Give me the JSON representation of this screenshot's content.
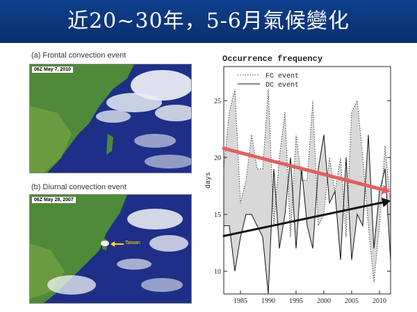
{
  "title": "近20~30年，5-6月氣候變化",
  "panel_a": {
    "caption": "(a)  Frontal convection event",
    "label": "06Z May 7, 2010"
  },
  "panel_b": {
    "caption": "(b)  Diurnal convection event",
    "label": "06Z May 28, 2007",
    "annotation": "Taiwan"
  },
  "colors": {
    "header_bg": "#0e3f8c",
    "ocean": "#1f2f88",
    "land": "#4f8a3a",
    "cloud": "#f2f4f8",
    "fc_fill": "#d8d8d8",
    "fc_trend": "#e06060",
    "dc_trend": "#111111"
  },
  "chart_data": {
    "type": "line",
    "title": "Occurrence frequency",
    "xlabel": "",
    "ylabel": "days",
    "xlim": [
      1982,
      2012
    ],
    "ylim": [
      8,
      28
    ],
    "xticks": [
      1985,
      1990,
      1995,
      2000,
      2005,
      2010
    ],
    "yticks": [
      10,
      15,
      20,
      25
    ],
    "legend_position": "top-left",
    "series": [
      {
        "name": "FC event",
        "style": "dotted",
        "x": [
          1982,
          1983,
          1984,
          1985,
          1986,
          1987,
          1988,
          1989,
          1990,
          1991,
          1992,
          1993,
          1994,
          1995,
          1996,
          1997,
          1998,
          1999,
          2000,
          2001,
          2002,
          2003,
          2004,
          2005,
          2006,
          2007,
          2008,
          2009,
          2010,
          2011,
          2012
        ],
        "values": [
          19,
          24,
          26,
          16,
          18,
          22,
          19,
          19,
          26,
          14,
          20,
          24,
          13,
          22,
          18,
          18,
          25,
          14,
          15,
          20,
          17,
          20,
          13,
          24,
          25,
          20,
          14,
          9,
          14,
          21,
          16
        ]
      },
      {
        "name": "DC event",
        "style": "solid",
        "x": [
          1982,
          1983,
          1984,
          1985,
          1986,
          1987,
          1988,
          1989,
          1990,
          1991,
          1992,
          1993,
          1994,
          1995,
          1996,
          1997,
          1998,
          1999,
          2000,
          2001,
          2002,
          2003,
          2004,
          2005,
          2006,
          2007,
          2008,
          2009,
          2010,
          2011,
          2012
        ],
        "values": [
          14,
          14,
          10,
          13,
          15,
          15,
          14,
          13,
          8,
          19,
          12,
          15,
          20,
          12,
          19,
          14,
          12,
          19,
          22,
          16,
          17,
          11,
          20,
          11,
          15,
          14,
          22,
          12,
          17,
          19,
          11
        ]
      }
    ],
    "trend_lines": [
      {
        "x": [
          1982,
          2012
        ],
        "values": [
          20.8,
          17.0
        ],
        "color": "#e06060"
      },
      {
        "x": [
          1982,
          2012
        ],
        "values": [
          13.1,
          16.2
        ],
        "color": "#111111"
      }
    ]
  }
}
